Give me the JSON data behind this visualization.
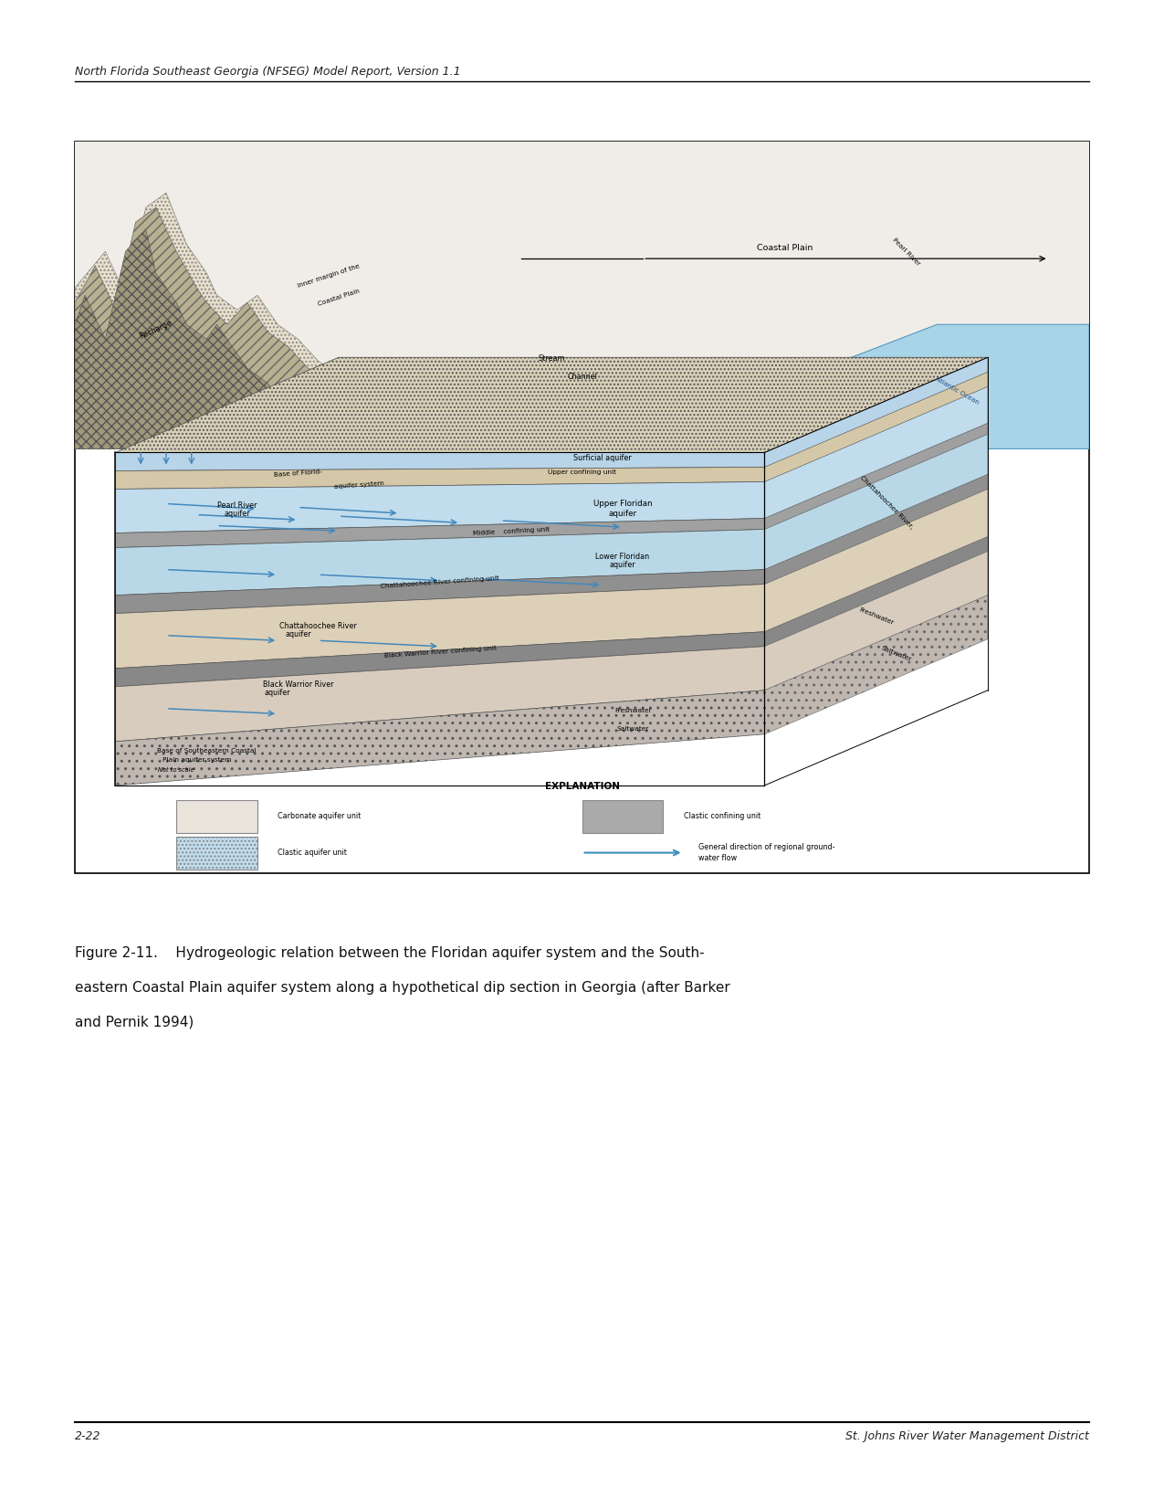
{
  "header_text": "North Florida Southeast Georgia (NFSEG) Model Report, Version 1.1",
  "footer_left": "2-22",
  "footer_right": "St. Johns River Water Management District",
  "bg_color": "#ffffff",
  "header_fontsize": 9,
  "footer_fontsize": 9,
  "caption_fontsize": 11,
  "page_width": 12.75,
  "page_height": 16.51,
  "caption_line1": "Figure 2-11.    Hydrogeologic relation between the Floridan aquifer system and the South-",
  "caption_line2": "eastern Coastal Plain aquifer system along a hypothetical dip section in Georgia (after Barker",
  "caption_line3": "and Pernik 1994)"
}
